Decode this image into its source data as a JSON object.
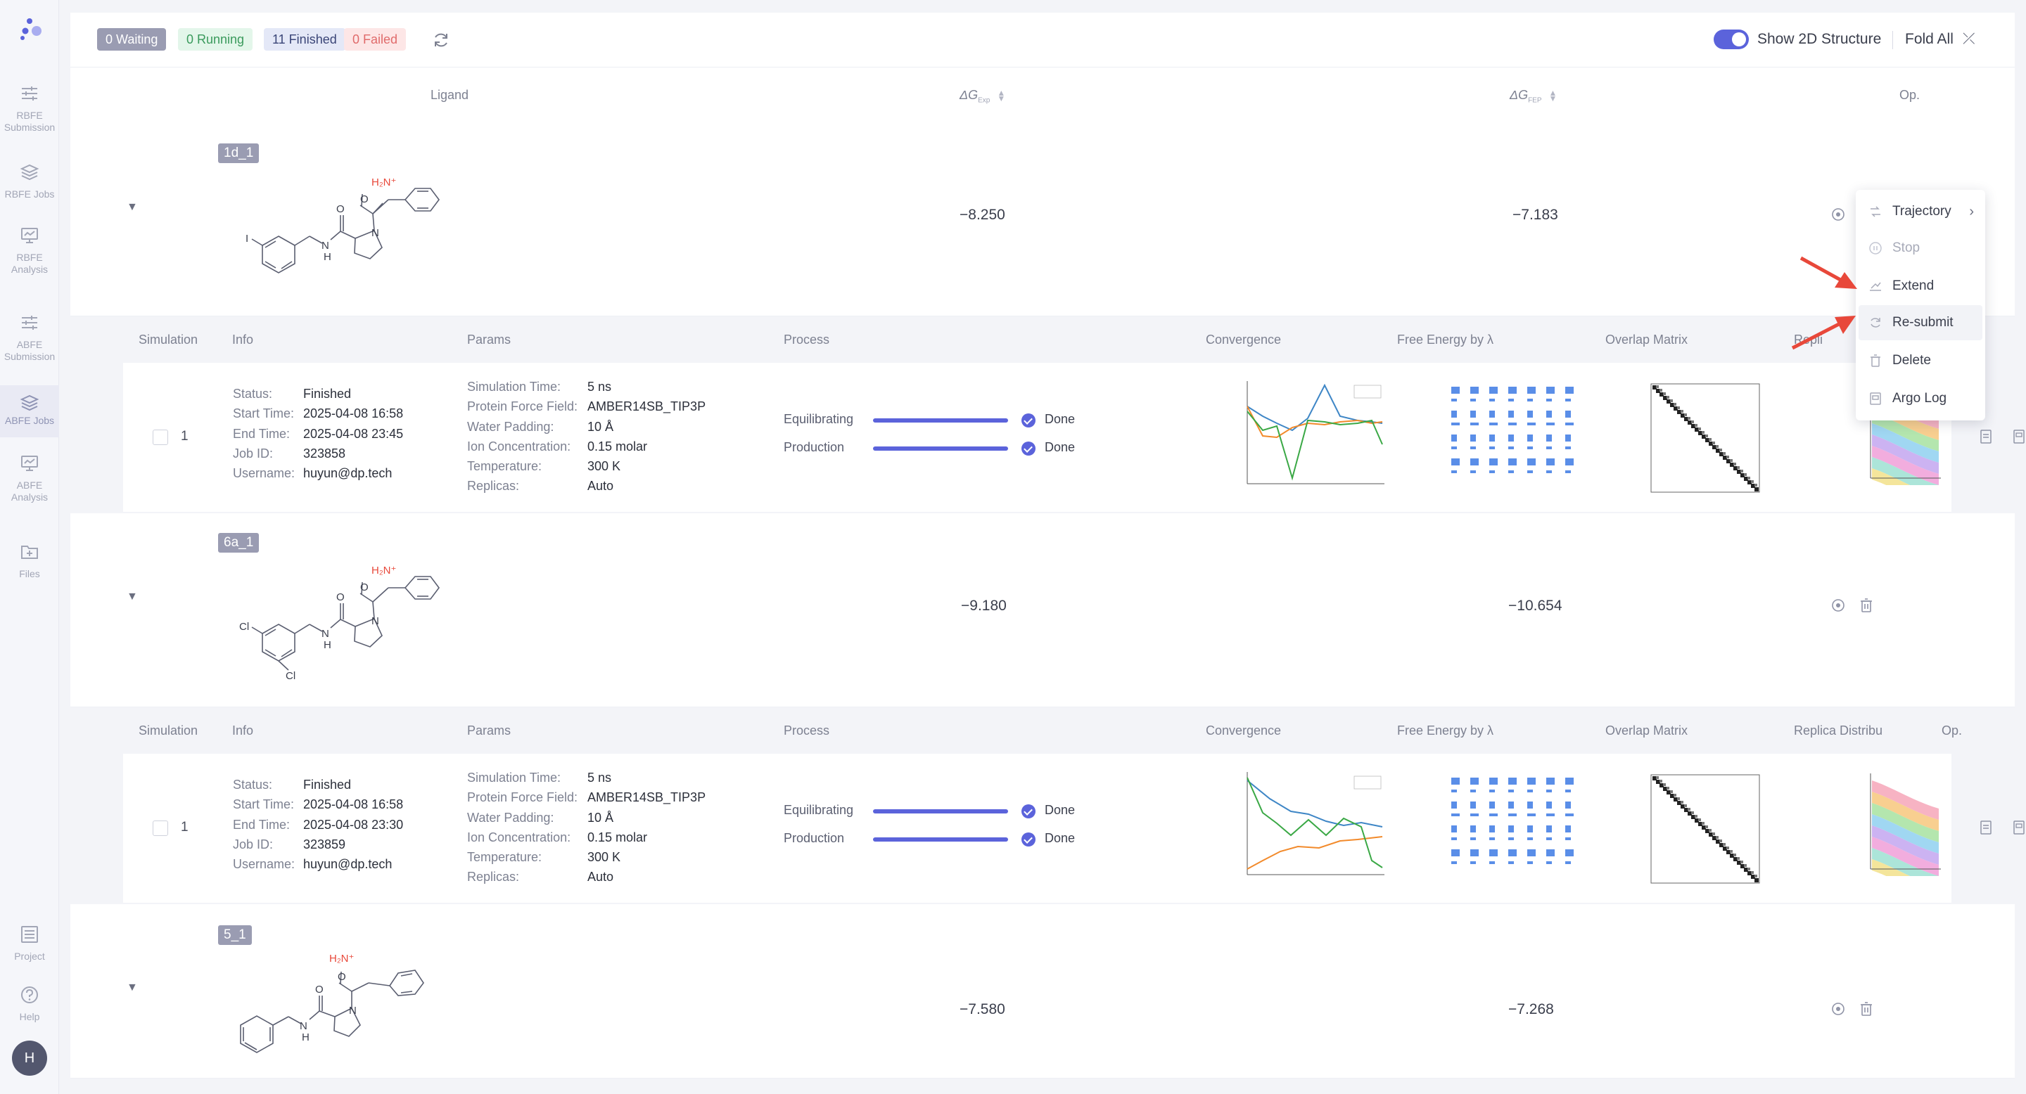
{
  "sidebar": {
    "items": [
      {
        "label": "RBFE Submission"
      },
      {
        "label": "RBFE Jobs"
      },
      {
        "label": "RBFE Analysis"
      },
      {
        "label": "ABFE Submission"
      },
      {
        "label": "ABFE Jobs"
      },
      {
        "label": "ABFE Analysis"
      },
      {
        "label": "Files"
      },
      {
        "label": "Project"
      },
      {
        "label": "Help"
      }
    ],
    "avatar": "H"
  },
  "status": {
    "waiting": "0 Waiting",
    "running": "0 Running",
    "finished": "11 Finished",
    "failed": "0 Failed"
  },
  "toolbar": {
    "show2d_label": "Show 2D Structure",
    "fold_all_label": "Fold All",
    "show2d_on": true
  },
  "columns": {
    "ligand": "Ligand",
    "dg_exp": "ΔG",
    "dg_exp_sub": "Exp",
    "dg_fep": "ΔG",
    "dg_fep_sub": "FEP",
    "op": "Op."
  },
  "sim_columns": {
    "simulation": "Simulation",
    "info": "Info",
    "params": "Params",
    "process": "Process",
    "convergence": "Convergence",
    "free_energy": "Free Energy by λ",
    "overlap": "Overlap Matrix",
    "replica": "Replica Distribu",
    "replica_clipped": "Repli",
    "op": "Op."
  },
  "ligands": [
    {
      "tag": "1d_1",
      "dg_exp": "−8.250",
      "dg_fep": "−7.183",
      "simulation": {
        "num": "1",
        "status": "Finished",
        "start": "2025-04-08 16:58",
        "end": "2025-04-08 23:45",
        "job_id": "323858",
        "username": "huyun@dp.tech",
        "sim_time": "5 ns",
        "force_field": "AMBER14SB_TIP3P",
        "water_padding": "10 Å",
        "ion_conc": "0.15 molar",
        "temperature": "300 K",
        "replicas": "Auto",
        "equilibrating": "Done",
        "production": "Done"
      }
    },
    {
      "tag": "6a_1",
      "dg_exp": "−9.180",
      "dg_fep": "−10.654",
      "simulation": {
        "num": "1",
        "status": "Finished",
        "start": "2025-04-08 16:58",
        "end": "2025-04-08 23:30",
        "job_id": "323859",
        "username": "huyun@dp.tech",
        "sim_time": "5 ns",
        "force_field": "AMBER14SB_TIP3P",
        "water_padding": "10 Å",
        "ion_conc": "0.15 molar",
        "temperature": "300 K",
        "replicas": "Auto",
        "equilibrating": "Done",
        "production": "Done"
      }
    },
    {
      "tag": "5_1",
      "dg_exp": "−7.580",
      "dg_fep": "−7.268"
    }
  ],
  "info_labels": {
    "status": "Status:",
    "start": "Start Time:",
    "end": "End Time:",
    "job_id": "Job ID:",
    "username": "Username:",
    "sim_time": "Simulation Time:",
    "force_field": "Protein Force Field:",
    "water_padding": "Water Padding:",
    "ion_conc": "Ion Concentration:",
    "temperature": "Temperature:",
    "replicas": "Replicas:",
    "equilibrating": "Equilibrating",
    "production": "Production"
  },
  "menu": {
    "items": [
      {
        "label": "Trajectory",
        "icon": "trajectory-icon"
      },
      {
        "label": "Stop",
        "icon": "stop-icon"
      },
      {
        "label": "Extend",
        "icon": "extend-icon"
      },
      {
        "label": "Re-submit",
        "icon": "resubmit-icon"
      },
      {
        "label": "Delete",
        "icon": "trash-icon"
      },
      {
        "label": "Argo Log",
        "icon": "log-icon"
      }
    ]
  },
  "molecule_labels": {
    "amine": "H₂N⁺",
    "oxygen": "O",
    "nitrogen": "N",
    "nh": "N",
    "h": "H",
    "iodine": "I",
    "chlorine": "Cl"
  },
  "colors": {
    "accent": "#5b63db",
    "annotation_arrow": "#e8483a"
  }
}
